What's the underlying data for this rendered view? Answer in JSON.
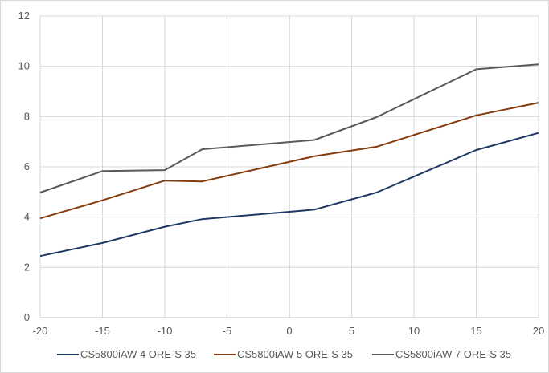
{
  "chart_data": {
    "type": "line",
    "title": "",
    "xlabel": "",
    "ylabel": "",
    "xlim": [
      -20,
      20
    ],
    "ylim": [
      0,
      12
    ],
    "x_ticks": [
      -20,
      -15,
      -10,
      -5,
      0,
      5,
      10,
      15,
      20
    ],
    "y_ticks": [
      0,
      2,
      4,
      6,
      8,
      10,
      12
    ],
    "grid": true,
    "legend_position": "bottom",
    "series": [
      {
        "name": "CS5800iAW 4 ORE-S 35",
        "color": "#203864",
        "points": [
          [
            -20,
            2.45
          ],
          [
            -15,
            2.97
          ],
          [
            -10,
            3.62
          ],
          [
            -7,
            3.92
          ],
          [
            2,
            4.3
          ],
          [
            7,
            4.98
          ],
          [
            15,
            6.67
          ],
          [
            20,
            7.35
          ]
        ]
      },
      {
        "name": "CS5800iAW 5 ORE-S 35",
        "color": "#843c0c",
        "points": [
          [
            -20,
            3.95
          ],
          [
            -15,
            4.67
          ],
          [
            -10,
            5.45
          ],
          [
            -7,
            5.42
          ],
          [
            2,
            6.42
          ],
          [
            7,
            6.8
          ],
          [
            15,
            8.05
          ],
          [
            20,
            8.55
          ]
        ]
      },
      {
        "name": "CS5800iAW 7 ORE-S 35",
        "color": "#595959",
        "points": [
          [
            -20,
            4.98
          ],
          [
            -15,
            5.83
          ],
          [
            -10,
            5.87
          ],
          [
            -7,
            6.7
          ],
          [
            2,
            7.07
          ],
          [
            7,
            7.98
          ],
          [
            15,
            9.88
          ],
          [
            20,
            10.08
          ]
        ]
      }
    ]
  }
}
